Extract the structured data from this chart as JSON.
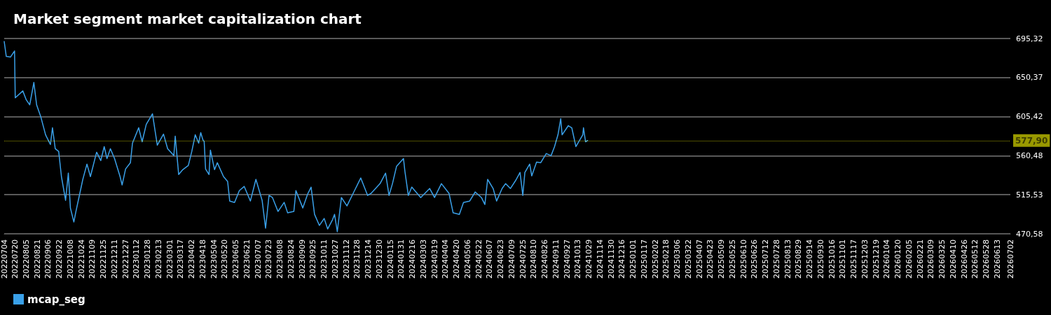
{
  "chart_data": {
    "type": "line",
    "title": "Market segment market capitalization chart",
    "x": [
      "2022-07-04",
      "2022-07-07",
      "2022-07-13",
      "2022-07-19",
      "2022-07-20",
      "2022-07-31",
      "2022-08-05",
      "2022-08-10",
      "2022-08-16",
      "2022-08-20",
      "2022-08-26",
      "2022-09-02",
      "2022-09-09",
      "2022-09-12",
      "2022-09-16",
      "2022-09-21",
      "2022-09-25",
      "2022-10-01",
      "2022-10-05",
      "2022-10-08",
      "2022-10-13",
      "2022-10-16",
      "2022-10-21",
      "2022-10-26",
      "2022-11-01",
      "2022-11-06",
      "2022-11-15",
      "2022-11-21",
      "2022-11-26",
      "2022-11-30",
      "2022-12-05",
      "2022-12-11",
      "2022-12-19",
      "2022-12-22",
      "2022-12-27",
      "2023-01-03",
      "2023-01-06",
      "2023-01-15",
      "2023-01-20",
      "2023-01-26",
      "2023-02-04",
      "2023-02-11",
      "2023-02-20",
      "2023-02-26",
      "2023-03-07",
      "2023-03-09",
      "2023-03-14",
      "2023-03-20",
      "2023-03-28",
      "2023-04-02",
      "2023-04-07",
      "2023-04-12",
      "2023-04-15",
      "2023-04-18",
      "2023-04-20",
      "2023-04-22",
      "2023-04-27",
      "2023-04-29",
      "2023-05-05",
      "2023-05-09",
      "2023-05-18",
      "2023-05-24",
      "2023-05-27",
      "2023-06-03",
      "2023-06-10",
      "2023-06-17",
      "2023-06-26",
      "2023-07-04",
      "2023-07-13",
      "2023-07-18",
      "2023-07-23",
      "2023-07-28",
      "2023-08-05",
      "2023-08-14",
      "2023-08-19",
      "2023-08-28",
      "2023-08-31",
      "2023-09-10",
      "2023-09-17",
      "2023-09-22",
      "2023-09-27",
      "2023-10-04",
      "2023-10-11",
      "2023-10-16",
      "2023-10-23",
      "2023-10-26",
      "2023-10-30",
      "2023-11-05",
      "2023-11-13",
      "2023-11-23",
      "2023-12-03",
      "2023-12-13",
      "2023-12-18",
      "2023-12-31",
      "2024-01-08",
      "2024-01-13",
      "2024-01-18",
      "2024-01-24",
      "2024-02-03",
      "2024-02-05",
      "2024-02-10",
      "2024-02-15",
      "2024-02-28",
      "2024-03-12",
      "2024-03-19",
      "2024-03-29",
      "2024-04-09",
      "2024-04-15",
      "2024-04-24",
      "2024-04-30",
      "2024-05-09",
      "2024-05-17",
      "2024-05-26",
      "2024-05-31",
      "2024-06-04",
      "2024-06-12",
      "2024-06-17",
      "2024-06-25",
      "2024-06-30",
      "2024-07-07",
      "2024-07-15",
      "2024-07-21",
      "2024-07-25",
      "2024-07-28",
      "2024-08-04",
      "2024-08-07",
      "2024-08-14",
      "2024-08-20",
      "2024-08-28",
      "2024-09-04",
      "2024-09-09",
      "2024-09-14",
      "2024-09-18",
      "2024-09-20",
      "2024-09-29",
      "2024-10-04",
      "2024-10-10",
      "2024-10-20",
      "2024-10-21",
      "2024-10-24",
      "2024-10-27"
    ],
    "series": [
      {
        "name": "mcap_seg",
        "color": "#3aa0e8",
        "values": [
          691.9,
          674.7,
          673.9,
          680.9,
          627.0,
          635.0,
          624.7,
          619.0,
          644.7,
          619.0,
          605.4,
          584.5,
          573.3,
          592.6,
          568.5,
          565.3,
          536.4,
          509.1,
          540.4,
          500.3,
          484.2,
          496.3,
          514.7,
          533.2,
          550.8,
          536.4,
          564.5,
          554.8,
          570.9,
          557.2,
          568.5,
          557.2,
          536.4,
          526.8,
          545.2,
          552.4,
          574.9,
          592.6,
          576.5,
          596.6,
          608.6,
          572.5,
          585.3,
          568.5,
          560.5,
          582.9,
          538.8,
          544.4,
          549.2,
          565.3,
          584.5,
          574.9,
          587.0,
          578.9,
          576.5,
          545.2,
          538.8,
          566.9,
          544.4,
          552.4,
          536.4,
          530.8,
          508.3,
          506.7,
          520.3,
          525.1,
          508.3,
          533.2,
          509.1,
          477.0,
          514.7,
          512.3,
          496.3,
          506.7,
          494.7,
          496.3,
          520.3,
          500.3,
          516.3,
          524.3,
          493.0,
          480.2,
          488.2,
          476.2,
          486.6,
          493.0,
          473.0,
          512.3,
          502.7,
          518.7,
          534.8,
          514.7,
          517.1,
          528.3,
          540.4,
          514.7,
          528.3,
          548.4,
          557.2,
          542.8,
          514.7,
          524.3,
          512.3,
          522.7,
          512.3,
          528.3,
          517.1,
          494.7,
          493.0,
          506.7,
          508.3,
          518.7,
          512.3,
          504.3,
          533.2,
          522.7,
          508.3,
          522.7,
          528.3,
          522.7,
          532.4,
          541.2,
          514.7,
          541.2,
          550.8,
          537.2,
          553.2,
          552.4,
          562.9,
          560.5,
          570.9,
          584.5,
          603.0,
          584.5,
          595.0,
          592.6,
          570.9,
          584.5,
          592.6,
          576.5,
          577.9
        ]
      }
    ],
    "ylim": [
      470.58,
      695.32
    ],
    "yticks": [
      {
        "value": 470.58,
        "label": "470,58"
      },
      {
        "value": 515.53,
        "label": "515,53"
      },
      {
        "value": 560.48,
        "label": "560,48"
      },
      {
        "value": 605.42,
        "label": "605,42"
      },
      {
        "value": 650.37,
        "label": "650,37"
      },
      {
        "value": 695.32,
        "label": "695,32"
      }
    ],
    "xlim": [
      "2022-07-04",
      "2026-07-02"
    ],
    "xticks": [
      {
        "value": "2022-07-04",
        "label": "20220704"
      },
      {
        "value": "2022-07-20",
        "label": "20220720"
      },
      {
        "value": "2022-08-05",
        "label": "20220805"
      },
      {
        "value": "2022-08-21",
        "label": "20220821"
      },
      {
        "value": "2022-09-06",
        "label": "20220906"
      },
      {
        "value": "2022-09-22",
        "label": "20220922"
      },
      {
        "value": "2022-10-08",
        "label": "20221008"
      },
      {
        "value": "2022-10-24",
        "label": "20221024"
      },
      {
        "value": "2022-11-09",
        "label": "20221109"
      },
      {
        "value": "2022-11-25",
        "label": "20221125"
      },
      {
        "value": "2022-12-11",
        "label": "20221211"
      },
      {
        "value": "2022-12-27",
        "label": "20221227"
      },
      {
        "value": "2023-01-12",
        "label": "20230112"
      },
      {
        "value": "2023-01-28",
        "label": "20230128"
      },
      {
        "value": "2023-02-13",
        "label": "20230213"
      },
      {
        "value": "2023-03-01",
        "label": "20230301"
      },
      {
        "value": "2023-03-17",
        "label": "20230317"
      },
      {
        "value": "2023-04-02",
        "label": "20230402"
      },
      {
        "value": "2023-04-18",
        "label": "20230418"
      },
      {
        "value": "2023-05-04",
        "label": "20230504"
      },
      {
        "value": "2023-05-20",
        "label": "20230520"
      },
      {
        "value": "2023-06-05",
        "label": "20230605"
      },
      {
        "value": "2023-06-21",
        "label": "20230621"
      },
      {
        "value": "2023-07-07",
        "label": "20230707"
      },
      {
        "value": "2023-07-23",
        "label": "20230723"
      },
      {
        "value": "2023-08-08",
        "label": "20230808"
      },
      {
        "value": "2023-08-24",
        "label": "20230824"
      },
      {
        "value": "2023-09-09",
        "label": "20230909"
      },
      {
        "value": "2023-09-25",
        "label": "20230925"
      },
      {
        "value": "2023-10-11",
        "label": "20231011"
      },
      {
        "value": "2023-10-27",
        "label": "20231027"
      },
      {
        "value": "2023-11-12",
        "label": "20231112"
      },
      {
        "value": "2023-11-28",
        "label": "20231128"
      },
      {
        "value": "2023-12-14",
        "label": "20231214"
      },
      {
        "value": "2023-12-30",
        "label": "20231230"
      },
      {
        "value": "2024-01-15",
        "label": "20240115"
      },
      {
        "value": "2024-01-31",
        "label": "20240131"
      },
      {
        "value": "2024-02-16",
        "label": "20240216"
      },
      {
        "value": "2024-03-03",
        "label": "20240303"
      },
      {
        "value": "2024-03-19",
        "label": "20240319"
      },
      {
        "value": "2024-04-04",
        "label": "20240404"
      },
      {
        "value": "2024-04-20",
        "label": "20240420"
      },
      {
        "value": "2024-05-06",
        "label": "20240506"
      },
      {
        "value": "2024-05-22",
        "label": "20240522"
      },
      {
        "value": "2024-06-07",
        "label": "20240607"
      },
      {
        "value": "2024-06-23",
        "label": "20240623"
      },
      {
        "value": "2024-07-09",
        "label": "20240709"
      },
      {
        "value": "2024-07-25",
        "label": "20240725"
      },
      {
        "value": "2024-08-10",
        "label": "20240810"
      },
      {
        "value": "2024-08-26",
        "label": "20240826"
      },
      {
        "value": "2024-09-11",
        "label": "20240911"
      },
      {
        "value": "2024-09-27",
        "label": "20240927"
      },
      {
        "value": "2024-10-13",
        "label": "20241013"
      },
      {
        "value": "2024-10-29",
        "label": "20241029"
      },
      {
        "value": "2024-11-14",
        "label": "20241114"
      },
      {
        "value": "2024-11-30",
        "label": "20241130"
      },
      {
        "value": "2024-12-16",
        "label": "20241216"
      },
      {
        "value": "2025-01-01",
        "label": "20250101"
      },
      {
        "value": "2025-01-17",
        "label": "20250117"
      },
      {
        "value": "2025-02-02",
        "label": "20250202"
      },
      {
        "value": "2025-02-18",
        "label": "20250218"
      },
      {
        "value": "2025-03-06",
        "label": "20250306"
      },
      {
        "value": "2025-03-22",
        "label": "20250322"
      },
      {
        "value": "2025-04-07",
        "label": "20250407"
      },
      {
        "value": "2025-04-23",
        "label": "20250423"
      },
      {
        "value": "2025-05-09",
        "label": "20250509"
      },
      {
        "value": "2025-05-25",
        "label": "20250525"
      },
      {
        "value": "2025-06-10",
        "label": "20250610"
      },
      {
        "value": "2025-06-26",
        "label": "20250626"
      },
      {
        "value": "2025-07-12",
        "label": "20250712"
      },
      {
        "value": "2025-07-28",
        "label": "20250728"
      },
      {
        "value": "2025-08-13",
        "label": "20250813"
      },
      {
        "value": "2025-08-29",
        "label": "20250829"
      },
      {
        "value": "2025-09-14",
        "label": "20250914"
      },
      {
        "value": "2025-09-30",
        "label": "20250930"
      },
      {
        "value": "2025-10-16",
        "label": "20251016"
      },
      {
        "value": "2025-11-01",
        "label": "20251101"
      },
      {
        "value": "2025-11-17",
        "label": "20251117"
      },
      {
        "value": "2025-12-03",
        "label": "20251203"
      },
      {
        "value": "2025-12-19",
        "label": "20251219"
      },
      {
        "value": "2026-01-04",
        "label": "20260104"
      },
      {
        "value": "2026-01-20",
        "label": "20260120"
      },
      {
        "value": "2026-02-05",
        "label": "20260205"
      },
      {
        "value": "2026-02-21",
        "label": "20260221"
      },
      {
        "value": "2026-03-09",
        "label": "20260309"
      },
      {
        "value": "2026-03-25",
        "label": "20260325"
      },
      {
        "value": "2026-04-10",
        "label": "20260410"
      },
      {
        "value": "2026-04-26",
        "label": "20260426"
      },
      {
        "value": "2026-05-12",
        "label": "20260512"
      },
      {
        "value": "2026-05-28",
        "label": "20260528"
      },
      {
        "value": "2026-06-13",
        "label": "20260613"
      },
      {
        "value": "2026-07-02",
        "label": "20260702"
      }
    ],
    "ref_lines": [
      {
        "axis": "y",
        "value": 577.9,
        "label": "577,90",
        "color": "#ffff00",
        "line_style": "dotted"
      }
    ],
    "grid": "y",
    "legend": "bottom left",
    "marker": "none",
    "line_style": "solid"
  }
}
